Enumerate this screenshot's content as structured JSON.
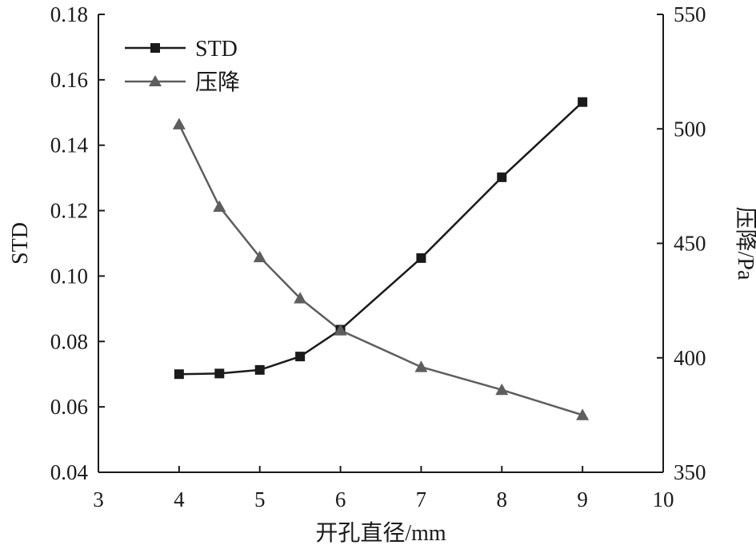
{
  "chart_data": {
    "type": "line",
    "xlabel": "开孔直径/mm",
    "ylabel": "STD",
    "y2label": "压降/Pa",
    "xlim": [
      3,
      10
    ],
    "ylim": [
      0.04,
      0.18
    ],
    "y2lim": [
      350,
      550
    ],
    "xticks": [
      "3",
      "4",
      "5",
      "6",
      "7",
      "8",
      "9",
      "10"
    ],
    "yticks": [
      "0.04",
      "0.06",
      "0.08",
      "0.10",
      "0.12",
      "0.14",
      "0.16",
      "0.18"
    ],
    "y2ticks": [
      "350",
      "400",
      "450",
      "500",
      "550"
    ],
    "grid": false,
    "legend_position": "top-left",
    "series": [
      {
        "name": "STD",
        "axis": "left",
        "marker": "square",
        "color": "#1a1a1a",
        "x": [
          4,
          4.5,
          5,
          5.5,
          6,
          7,
          8,
          9
        ],
        "values": [
          0.07,
          0.0702,
          0.0713,
          0.0754,
          0.0836,
          0.1055,
          0.1302,
          0.1532
        ]
      },
      {
        "name": "压降",
        "axis": "right",
        "marker": "triangle",
        "color": "#5e5e5e",
        "x": [
          4,
          4.5,
          5,
          5.5,
          6,
          7,
          8,
          9
        ],
        "values": [
          502,
          466,
          444,
          426,
          412,
          396,
          386,
          375
        ]
      }
    ]
  }
}
